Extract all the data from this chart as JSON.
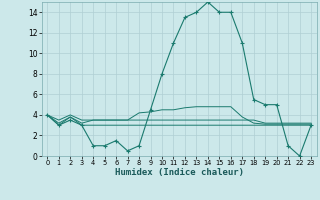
{
  "xlabel": "Humidex (Indice chaleur)",
  "x": [
    0,
    1,
    2,
    3,
    4,
    5,
    6,
    7,
    8,
    9,
    10,
    11,
    12,
    13,
    14,
    15,
    16,
    17,
    18,
    19,
    20,
    21,
    22,
    23
  ],
  "line1": [
    4,
    3,
    3.5,
    3,
    1,
    1,
    1.5,
    0.5,
    1,
    4.5,
    8,
    11,
    13.5,
    14,
    15,
    14,
    14,
    11,
    5.5,
    5,
    5,
    1,
    0,
    3
  ],
  "line2": [
    4,
    3,
    3.8,
    3.2,
    3.5,
    3.5,
    3.5,
    3.5,
    4.2,
    4.3,
    4.5,
    4.5,
    4.7,
    4.8,
    4.8,
    4.8,
    4.8,
    3.8,
    3.2,
    3.1,
    3.1,
    3.1,
    3.1,
    3.1
  ],
  "line3": [
    4,
    3.5,
    4,
    3.5,
    3.5,
    3.5,
    3.5,
    3.5,
    3.5,
    3.5,
    3.5,
    3.5,
    3.5,
    3.5,
    3.5,
    3.5,
    3.5,
    3.5,
    3.5,
    3.2,
    3.2,
    3.2,
    3.2,
    3.2
  ],
  "line4": [
    4,
    3.2,
    3.8,
    3.0,
    3.0,
    3.0,
    3.0,
    3.0,
    3.0,
    3.0,
    3.0,
    3.0,
    3.0,
    3.0,
    3.0,
    3.0,
    3.0,
    3.0,
    3.0,
    3.0,
    3.0,
    3.0,
    3.0,
    3.0
  ],
  "color": "#1a7a6e",
  "bg_color": "#cce8ea",
  "grid_color": "#b0cfd4",
  "xlim": [
    -0.5,
    23.5
  ],
  "ylim": [
    0,
    15
  ],
  "yticks": [
    0,
    2,
    4,
    6,
    8,
    10,
    12,
    14
  ],
  "xticks": [
    0,
    1,
    2,
    3,
    4,
    5,
    6,
    7,
    8,
    9,
    10,
    11,
    12,
    13,
    14,
    15,
    16,
    17,
    18,
    19,
    20,
    21,
    22,
    23
  ]
}
